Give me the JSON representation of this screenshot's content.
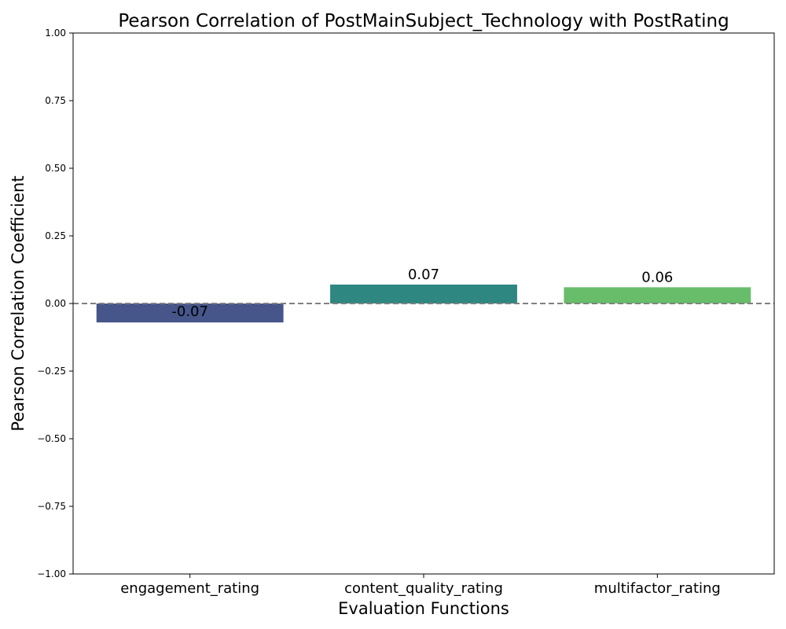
{
  "chart_data": {
    "type": "bar",
    "title": "Pearson Correlation of PostMainSubject_Technology with PostRating",
    "xlabel": "Evaluation Functions",
    "ylabel": "Pearson Correlation Coefficient",
    "categories": [
      "engagement_rating",
      "content_quality_rating",
      "multifactor_rating"
    ],
    "values": [
      -0.07,
      0.07,
      0.06
    ],
    "data_labels": [
      "-0.07",
      "0.07",
      "0.06"
    ],
    "colors": [
      "#46558a",
      "#2e8780",
      "#68bd6b"
    ],
    "ylim": [
      -1.0,
      1.0
    ],
    "yticks": [
      -1.0,
      -0.75,
      -0.5,
      -0.25,
      0.0,
      0.25,
      0.5,
      0.75,
      1.0
    ],
    "ytick_labels": [
      "−1.00",
      "−0.75",
      "−0.50",
      "−0.25",
      "0.00",
      "0.25",
      "0.50",
      "0.75",
      "1.00"
    ],
    "reference_line": {
      "y": 0.0,
      "style": "dashed",
      "color": "#808080"
    },
    "grid": false,
    "legend": "none"
  }
}
